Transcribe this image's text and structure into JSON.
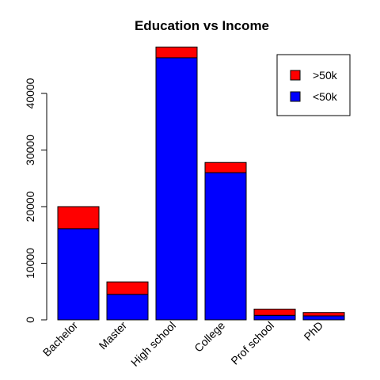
{
  "chart_data": {
    "type": "bar",
    "stacked": true,
    "title": "Education vs Income",
    "xlabel": "",
    "ylabel": "",
    "categories": [
      "Bachelor",
      "Master",
      "High school",
      "College",
      "Prof school",
      "PhD"
    ],
    "series": [
      {
        "name": "<50k",
        "color": "#0000FF",
        "values": [
          16100,
          4500,
          46300,
          26000,
          800,
          700
        ]
      },
      {
        "name": ">50k",
        "color": "#FF0000",
        "values": [
          3900,
          2200,
          1900,
          1800,
          1100,
          600
        ]
      }
    ],
    "yticks": [
      0,
      10000,
      20000,
      30000,
      40000
    ],
    "ylim": [
      0,
      48200
    ],
    "grid": false,
    "legend_position": "top-right",
    "legend_order": [
      ">50k",
      "<50k"
    ]
  }
}
